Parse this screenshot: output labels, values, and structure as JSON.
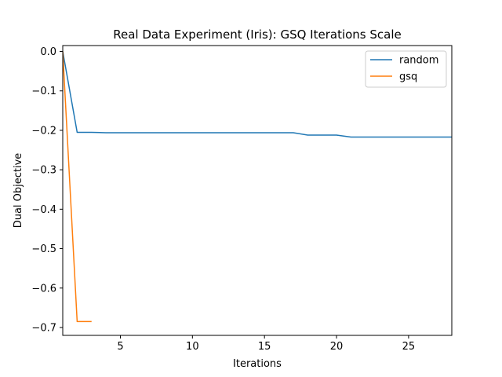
{
  "chart_data": {
    "type": "line",
    "title": "Real Data Experiment (Iris): GSQ Iterations Scale",
    "xlabel": "Iterations",
    "ylabel": "Dual Objective",
    "xlim": [
      1,
      28
    ],
    "ylim": [
      -0.72,
      0.015
    ],
    "xticks": [
      5,
      10,
      15,
      20,
      25
    ],
    "yticks": [
      0.0,
      -0.1,
      -0.2,
      -0.3,
      -0.4,
      -0.5,
      -0.6,
      -0.7
    ],
    "ytick_labels": [
      "0.0",
      "−0.1",
      "−0.2",
      "−0.3",
      "−0.4",
      "−0.5",
      "−0.6",
      "−0.7"
    ],
    "grid": false,
    "legend_position": "top-right",
    "series": [
      {
        "name": "random",
        "color": "#1f77b4",
        "x": [
          1,
          2,
          3,
          4,
          5,
          6,
          7,
          8,
          9,
          10,
          11,
          12,
          13,
          14,
          15,
          16,
          17,
          18,
          19,
          20,
          21,
          22,
          23,
          24,
          25,
          26,
          27,
          28
        ],
        "y": [
          0.0,
          -0.205,
          -0.205,
          -0.206,
          -0.206,
          -0.206,
          -0.206,
          -0.206,
          -0.206,
          -0.206,
          -0.206,
          -0.206,
          -0.206,
          -0.206,
          -0.206,
          -0.206,
          -0.206,
          -0.212,
          -0.212,
          -0.212,
          -0.217,
          -0.217,
          -0.217,
          -0.217,
          -0.217,
          -0.217,
          -0.217,
          -0.217
        ]
      },
      {
        "name": "gsq",
        "color": "#ff7f0e",
        "x": [
          1,
          2,
          3
        ],
        "y": [
          0.0,
          -0.685,
          -0.685
        ]
      }
    ]
  }
}
